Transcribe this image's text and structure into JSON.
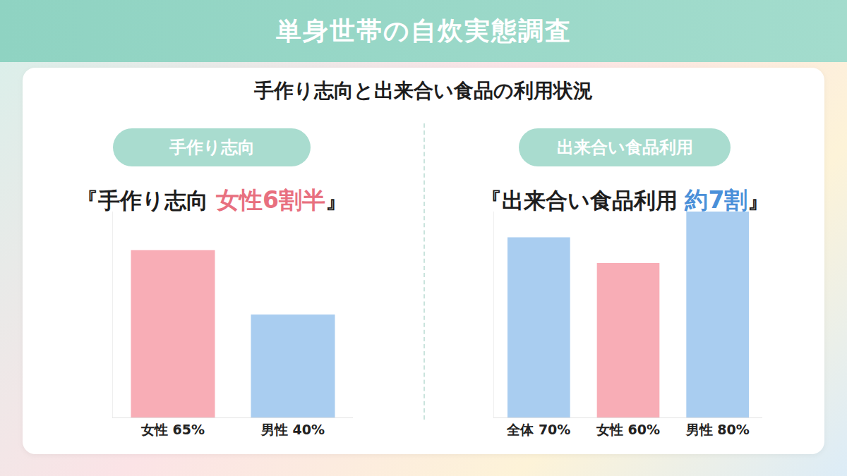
{
  "header": {
    "title": "単身世帯の自炊実態調査",
    "subtitle": "手作り志向と出来合い食品の利用状況"
  },
  "chart_data": [
    {
      "type": "bar",
      "tag": "手作り志向",
      "headline": {
        "before": "『手作り志向 ",
        "highlight": "女性6割半",
        "after": "』"
      },
      "categories": [
        "女性",
        "男性"
      ],
      "values": [
        65,
        40
      ],
      "value_labels": [
        "65%",
        "40%"
      ],
      "colors": [
        "#f8adb6",
        "#a9cdf0"
      ],
      "ylim": [
        0,
        80
      ],
      "data_labels": true,
      "tick_labels": "x",
      "grid": false
    },
    {
      "type": "bar",
      "tag": "出来合い食品利用",
      "headline": {
        "before": "『出来合い食品利用 ",
        "highlight": "約7割",
        "after": "』"
      },
      "categories": [
        "全体",
        "女性",
        "男性"
      ],
      "values": [
        70,
        60,
        80
      ],
      "value_labels": [
        "70%",
        "60%",
        "80%"
      ],
      "colors": [
        "#a9cdf0",
        "#f8adb6",
        "#a9cdf0"
      ],
      "ylim": [
        0,
        80
      ],
      "data_labels": true,
      "tick_labels": "x",
      "grid": false
    }
  ]
}
